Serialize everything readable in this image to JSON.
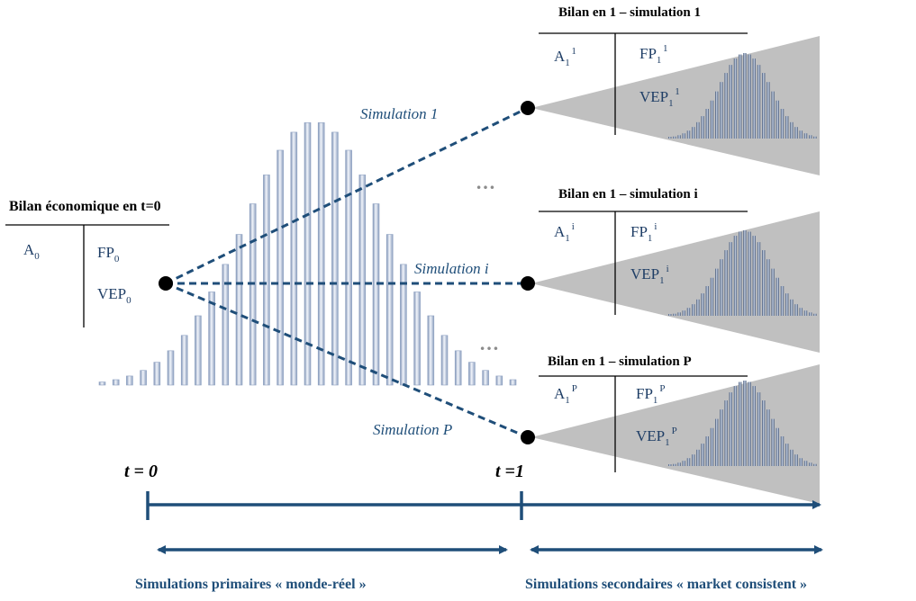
{
  "colors": {
    "navy": "#1f4e79",
    "blue_text": "#1f4e79",
    "triangle": "#bfbfbf",
    "bar_dark": "#6e84a8",
    "bar_light": "#e8eef8"
  },
  "initial_balance": {
    "title": "Bilan économique en t=0",
    "asset": {
      "base": "A",
      "sub": "0"
    },
    "equity": {
      "base": "FP",
      "sub": "0"
    },
    "vep": {
      "base": "VEP",
      "sub": "0"
    }
  },
  "simulation_labels": [
    "Simulation 1",
    "Simulation i",
    "Simulation P"
  ],
  "ellipsis": [
    "…",
    "…"
  ],
  "balances_t1": [
    {
      "title": "Bilan en 1 – simulation 1",
      "asset": {
        "base": "A",
        "sub": "1",
        "sup": "1"
      },
      "equity": {
        "base": "FP",
        "sub": "1",
        "sup": "1"
      },
      "vep": {
        "base": "VEP",
        "sub": "1",
        "sup": "1"
      }
    },
    {
      "title": "Bilan en 1 – simulation i",
      "asset": {
        "base": "A",
        "sub": "1",
        "sup": "i"
      },
      "equity": {
        "base": "FP",
        "sub": "1",
        "sup": "i"
      },
      "vep": {
        "base": "VEP",
        "sub": "1",
        "sup": "i"
      }
    },
    {
      "title": "Bilan en 1 – simulation P",
      "asset": {
        "base": "A",
        "sub": "1",
        "sup": "P"
      },
      "equity": {
        "base": "FP",
        "sub": "1",
        "sup": "P"
      },
      "vep": {
        "base": "VEP",
        "sub": "1",
        "sup": "P"
      }
    }
  ],
  "timeline": {
    "t0": "t = 0",
    "t1": "t =1"
  },
  "phases": {
    "primary": "Simulations primaires « monde-réel »",
    "secondary": "Simulations  secondaires « market consistent »"
  }
}
